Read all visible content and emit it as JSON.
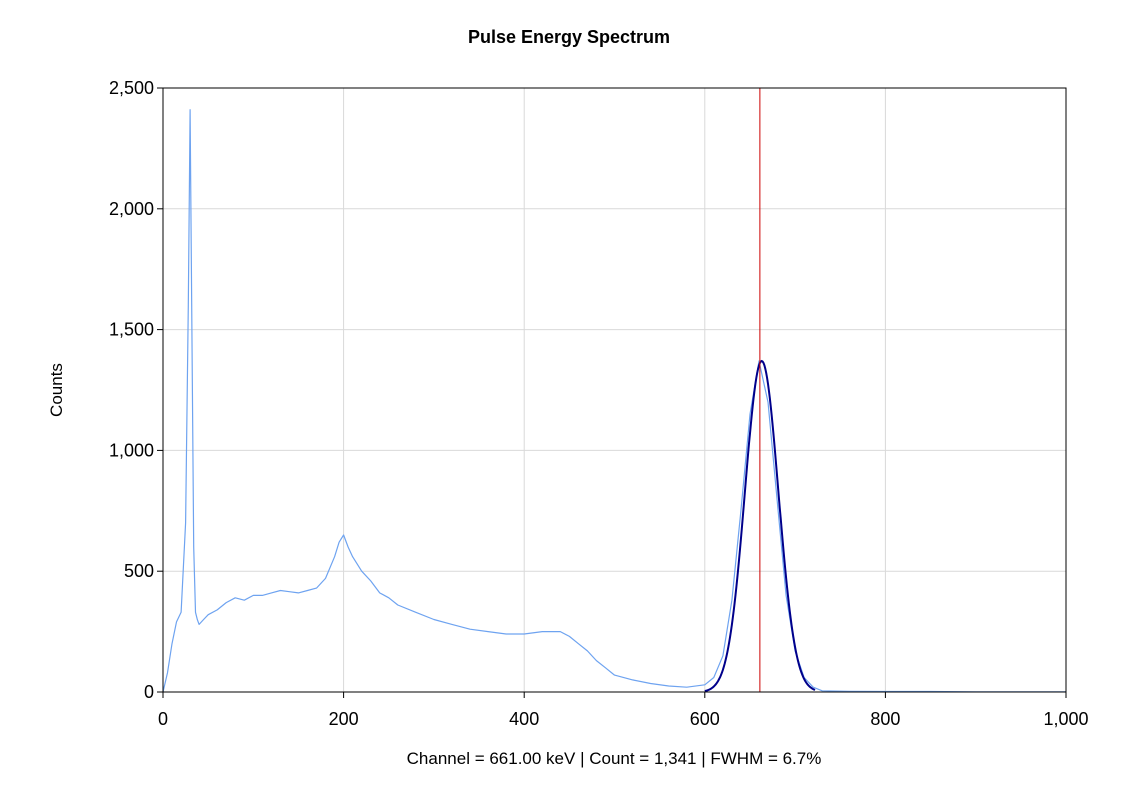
{
  "chart_data": {
    "type": "line",
    "title": "Pulse Energy Spectrum",
    "xlabel": "Channel = 661.00 keV | Count = 1,341 | FWHM = 6.7%",
    "ylabel": "Counts",
    "xlim": [
      0,
      1000
    ],
    "ylim": [
      0,
      2500
    ],
    "x_ticks": [
      0,
      200,
      400,
      600,
      800,
      1000
    ],
    "x_tick_labels": [
      "0",
      "200",
      "400",
      "600",
      "800",
      "1,000"
    ],
    "y_ticks": [
      0,
      500,
      1000,
      1500,
      2000,
      2500
    ],
    "y_tick_labels": [
      "0",
      "500",
      "1,000",
      "1,500",
      "2,000",
      "2,500"
    ],
    "grid": true,
    "marker_channel": 661,
    "colors": {
      "spectrum": "#6ea3f0",
      "fit": "#00008b",
      "marker": "#cc0000",
      "grid": "#d9d9d9"
    },
    "series": [
      {
        "name": "Spectrum",
        "x": [
          0,
          5,
          10,
          15,
          20,
          25,
          28,
          30,
          32,
          34,
          36,
          38,
          40,
          45,
          50,
          60,
          70,
          80,
          90,
          100,
          110,
          120,
          130,
          140,
          150,
          160,
          170,
          180,
          190,
          195,
          200,
          205,
          210,
          220,
          230,
          240,
          250,
          260,
          280,
          300,
          320,
          340,
          360,
          380,
          400,
          420,
          440,
          450,
          460,
          470,
          480,
          490,
          500,
          520,
          540,
          560,
          580,
          600,
          610,
          620,
          630,
          640,
          650,
          660,
          670,
          680,
          690,
          700,
          710,
          720,
          730,
          760,
          800,
          850,
          900,
          950,
          1000
        ],
        "y": [
          0,
          80,
          200,
          290,
          330,
          700,
          1600,
          2410,
          1500,
          600,
          330,
          300,
          280,
          300,
          320,
          340,
          370,
          390,
          380,
          400,
          400,
          410,
          420,
          415,
          410,
          420,
          430,
          470,
          560,
          620,
          650,
          600,
          560,
          500,
          460,
          410,
          390,
          360,
          330,
          300,
          280,
          260,
          250,
          240,
          240,
          250,
          250,
          230,
          200,
          170,
          130,
          100,
          70,
          50,
          35,
          25,
          20,
          30,
          60,
          150,
          380,
          750,
          1150,
          1370,
          1200,
          800,
          400,
          170,
          60,
          20,
          5,
          3,
          2,
          2,
          1,
          1,
          1
        ]
      },
      {
        "name": "Gaussian Fit",
        "function": "gaussian",
        "peak": 1370,
        "center": 663,
        "sigma": 18.5,
        "x_range": [
          600,
          722
        ]
      }
    ]
  }
}
